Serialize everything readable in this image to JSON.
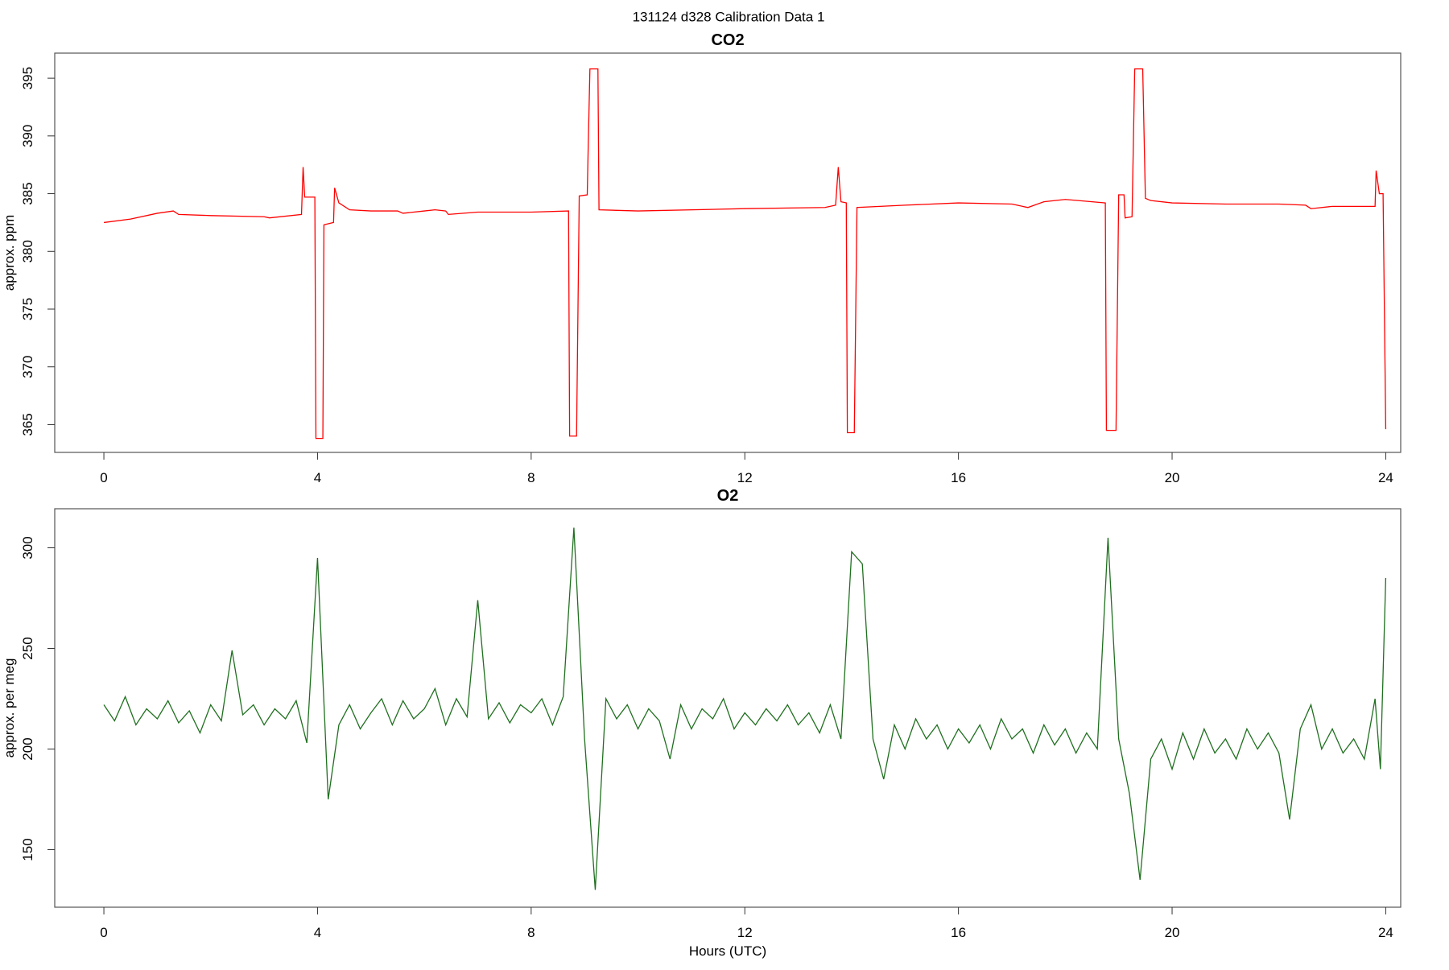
{
  "title": "131124   d328   Calibration Data 1",
  "chart_data": [
    {
      "type": "line",
      "title": "CO2",
      "ylabel": "approx. ppm",
      "xlim": [
        -0.92,
        24.28
      ],
      "xticks": [
        0,
        4,
        8,
        12,
        16,
        20,
        24
      ],
      "ylim": [
        362.59,
        397.17
      ],
      "yticks": [
        365,
        370,
        375,
        380,
        385,
        390,
        395
      ],
      "series": [
        {
          "color": "#ff0000",
          "x": [
            0,
            0.5,
            1.0,
            1.3,
            1.4,
            2.0,
            3.0,
            3.1,
            3.7,
            3.73,
            3.76,
            3.95,
            3.97,
            4.1,
            4.12,
            4.3,
            4.32,
            4.4,
            4.6,
            5.0,
            5.5,
            5.6,
            6.0,
            6.2,
            6.4,
            6.45,
            7.0,
            8.0,
            8.7,
            8.72,
            8.85,
            8.9,
            9.05,
            9.07,
            9.1,
            9.25,
            9.27,
            10,
            12,
            13.5,
            13.7,
            13.75,
            13.8,
            13.9,
            13.92,
            14.05,
            14.1,
            15,
            16,
            17.0,
            17.3,
            17.6,
            18,
            18.5,
            18.75,
            18.77,
            18.95,
            19.0,
            19.1,
            19.12,
            19.25,
            19.3,
            19.45,
            19.5,
            19.6,
            20,
            21,
            22.0,
            22.5,
            22.6,
            23.0,
            23.8,
            23.82,
            23.88,
            23.95,
            24.0
          ],
          "values": [
            382.5,
            382.8,
            383.3,
            383.5,
            383.2,
            383.1,
            383.0,
            382.9,
            383.2,
            387.3,
            384.7,
            384.7,
            363.8,
            363.8,
            382.3,
            382.5,
            385.5,
            384.2,
            383.6,
            383.5,
            383.5,
            383.3,
            383.5,
            383.6,
            383.5,
            383.2,
            383.4,
            383.4,
            383.5,
            364.0,
            364.0,
            384.8,
            384.9,
            389.5,
            395.8,
            395.8,
            383.6,
            383.5,
            383.7,
            383.8,
            384.0,
            387.3,
            384.3,
            384.2,
            364.3,
            364.3,
            383.8,
            384.0,
            384.2,
            384.1,
            383.8,
            384.3,
            384.5,
            384.3,
            384.2,
            364.5,
            364.5,
            384.9,
            384.9,
            382.9,
            383.0,
            395.8,
            395.8,
            384.6,
            384.4,
            384.2,
            384.1,
            384.1,
            384.0,
            383.7,
            383.9,
            383.9,
            387.0,
            385.0,
            385.0,
            364.6
          ]
        }
      ]
    },
    {
      "type": "line",
      "title": "O2",
      "ylabel": "approx. per meg",
      "xlabel": "Hours (UTC)",
      "xlim": [
        -0.92,
        24.28
      ],
      "xticks": [
        0,
        4,
        8,
        12,
        16,
        20,
        24
      ],
      "ylim": [
        121.4,
        319.4
      ],
      "yticks": [
        150,
        200,
        250,
        300
      ],
      "series": [
        {
          "color": "#1f6f1f",
          "x": [
            0,
            0.2,
            0.4,
            0.6,
            0.8,
            1.0,
            1.2,
            1.4,
            1.6,
            1.8,
            2.0,
            2.2,
            2.4,
            2.6,
            2.8,
            3.0,
            3.2,
            3.4,
            3.6,
            3.8,
            4.0,
            4.2,
            4.4,
            4.6,
            4.8,
            5.0,
            5.2,
            5.4,
            5.6,
            5.8,
            6.0,
            6.2,
            6.4,
            6.6,
            6.8,
            7.0,
            7.2,
            7.4,
            7.6,
            7.8,
            8.0,
            8.2,
            8.4,
            8.6,
            8.8,
            9.0,
            9.2,
            9.4,
            9.6,
            9.8,
            10.0,
            10.2,
            10.4,
            10.6,
            10.8,
            11.0,
            11.2,
            11.4,
            11.6,
            11.8,
            12.0,
            12.2,
            12.4,
            12.6,
            12.8,
            13.0,
            13.2,
            13.4,
            13.6,
            13.8,
            14.0,
            14.2,
            14.4,
            14.6,
            14.8,
            15.0,
            15.2,
            15.4,
            15.6,
            15.8,
            16.0,
            16.2,
            16.4,
            16.6,
            16.8,
            17.0,
            17.2,
            17.4,
            17.6,
            17.8,
            18.0,
            18.2,
            18.4,
            18.6,
            18.8,
            19.0,
            19.2,
            19.4,
            19.6,
            19.8,
            20.0,
            20.2,
            20.4,
            20.6,
            20.8,
            21.0,
            21.2,
            21.4,
            21.6,
            21.8,
            22.0,
            22.2,
            22.4,
            22.6,
            22.8,
            23.0,
            23.2,
            23.4,
            23.6,
            23.8,
            23.9,
            24.0
          ],
          "values": [
            222,
            214,
            226,
            212,
            220,
            215,
            224,
            213,
            219,
            208,
            222,
            214,
            249,
            217,
            222,
            212,
            220,
            215,
            224,
            203,
            295,
            175,
            212,
            222,
            210,
            218,
            225,
            212,
            224,
            215,
            220,
            230,
            212,
            225,
            216,
            274,
            215,
            223,
            213,
            222,
            218,
            225,
            212,
            226,
            310,
            205,
            130,
            225,
            215,
            222,
            210,
            220,
            214,
            195,
            222,
            210,
            220,
            215,
            225,
            210,
            218,
            212,
            220,
            214,
            222,
            212,
            218,
            208,
            222,
            205,
            298,
            292,
            205,
            185,
            212,
            200,
            215,
            205,
            212,
            200,
            210,
            203,
            212,
            200,
            215,
            205,
            210,
            198,
            212,
            202,
            210,
            198,
            208,
            200,
            305,
            205,
            178,
            135,
            195,
            205,
            190,
            208,
            195,
            210,
            198,
            205,
            195,
            210,
            200,
            208,
            198,
            165,
            210,
            222,
            200,
            210,
            198,
            205,
            195,
            225,
            190,
            285
          ]
        }
      ]
    }
  ]
}
